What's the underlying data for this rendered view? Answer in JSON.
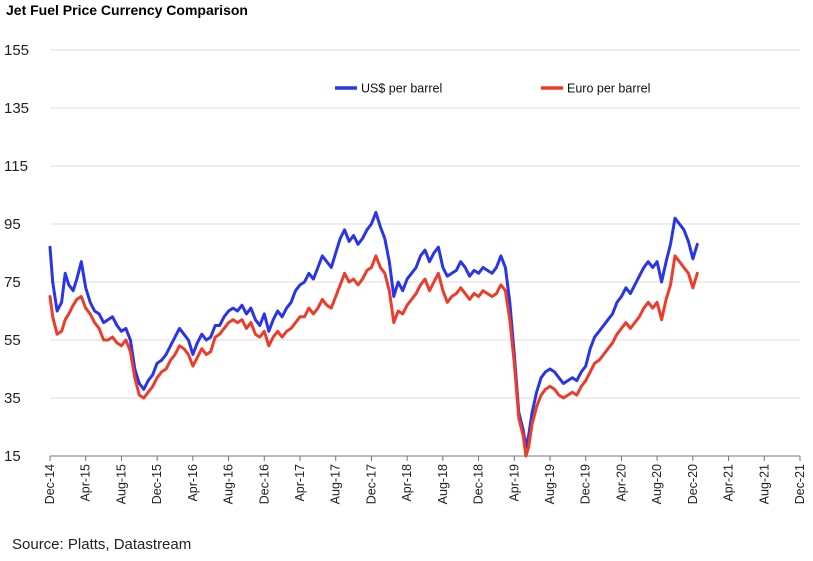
{
  "chart_data": {
    "type": "line",
    "title": "Jet Fuel Price Currency Comparison",
    "source": "Source: Platts, Datastream",
    "ylim": [
      15,
      155
    ],
    "yticks": [
      15,
      35,
      55,
      75,
      95,
      115,
      135,
      155
    ],
    "grid": true,
    "legend_position": "top",
    "xticks": [
      "Dec-14",
      "Apr-15",
      "Aug-15",
      "Dec-15",
      "Apr-16",
      "Aug-16",
      "Dec-16",
      "Apr-17",
      "Aug-17",
      "Dec-17",
      "Apr-18",
      "Aug-18",
      "Dec-18",
      "Apr-19",
      "Aug-19",
      "Dec-19",
      "Apr-20",
      "Aug-20",
      "Dec-20",
      "Apr-21",
      "Aug-21",
      "Dec-21"
    ],
    "series": [
      {
        "name": "US$ per barrel",
        "color": "#2b35e8",
        "points": [
          [
            0,
            87
          ],
          [
            0.3,
            75
          ],
          [
            0.8,
            65
          ],
          [
            1.3,
            68
          ],
          [
            1.7,
            78
          ],
          [
            2.1,
            74
          ],
          [
            2.6,
            72
          ],
          [
            3.0,
            76
          ],
          [
            3.5,
            82
          ],
          [
            4.0,
            73
          ],
          [
            4.5,
            68
          ],
          [
            5.0,
            65
          ],
          [
            5.5,
            64
          ],
          [
            6.0,
            61
          ],
          [
            6.5,
            62
          ],
          [
            7.0,
            63
          ],
          [
            7.5,
            60
          ],
          [
            8.0,
            58
          ],
          [
            8.5,
            59
          ],
          [
            9.0,
            55
          ],
          [
            9.5,
            45
          ],
          [
            10.0,
            40
          ],
          [
            10.5,
            38
          ],
          [
            11.0,
            41
          ],
          [
            11.5,
            43
          ],
          [
            12.0,
            47
          ],
          [
            12.5,
            48
          ],
          [
            13.0,
            50
          ],
          [
            13.5,
            53
          ],
          [
            14.0,
            56
          ],
          [
            14.5,
            59
          ],
          [
            15.0,
            57
          ],
          [
            15.5,
            55
          ],
          [
            16.0,
            50
          ],
          [
            16.5,
            54
          ],
          [
            17.0,
            57
          ],
          [
            17.5,
            55
          ],
          [
            18.0,
            56
          ],
          [
            18.5,
            60
          ],
          [
            19.0,
            60
          ],
          [
            19.5,
            63
          ],
          [
            20.0,
            65
          ],
          [
            20.5,
            66
          ],
          [
            21.0,
            65
          ],
          [
            21.5,
            67
          ],
          [
            22.0,
            64
          ],
          [
            22.5,
            66
          ],
          [
            23.0,
            62
          ],
          [
            23.5,
            60
          ],
          [
            24.0,
            64
          ],
          [
            24.5,
            58
          ],
          [
            25.0,
            62
          ],
          [
            25.5,
            65
          ],
          [
            26.0,
            63
          ],
          [
            26.5,
            66
          ],
          [
            27.0,
            68
          ],
          [
            27.5,
            72
          ],
          [
            28.0,
            74
          ],
          [
            28.5,
            75
          ],
          [
            29.0,
            78
          ],
          [
            29.5,
            76
          ],
          [
            30.0,
            80
          ],
          [
            30.5,
            84
          ],
          [
            31.0,
            82
          ],
          [
            31.5,
            80
          ],
          [
            32.0,
            85
          ],
          [
            32.5,
            90
          ],
          [
            33.0,
            93
          ],
          [
            33.5,
            89
          ],
          [
            34.0,
            91
          ],
          [
            34.5,
            88
          ],
          [
            35.0,
            90
          ],
          [
            35.5,
            93
          ],
          [
            36.0,
            95
          ],
          [
            36.5,
            99
          ],
          [
            37.0,
            94
          ],
          [
            37.5,
            90
          ],
          [
            38.0,
            82
          ],
          [
            38.5,
            70
          ],
          [
            39.0,
            75
          ],
          [
            39.5,
            72
          ],
          [
            40.0,
            76
          ],
          [
            40.5,
            78
          ],
          [
            41.0,
            80
          ],
          [
            41.5,
            84
          ],
          [
            42.0,
            86
          ],
          [
            42.5,
            82
          ],
          [
            43.0,
            85
          ],
          [
            43.5,
            87
          ],
          [
            44.0,
            80
          ],
          [
            44.5,
            77
          ],
          [
            45.0,
            78
          ],
          [
            45.5,
            79
          ],
          [
            46.0,
            82
          ],
          [
            46.5,
            80
          ],
          [
            47.0,
            77
          ],
          [
            47.5,
            79
          ],
          [
            48.0,
            78
          ],
          [
            48.5,
            80
          ],
          [
            49.0,
            79
          ],
          [
            49.5,
            78
          ],
          [
            50.0,
            80
          ],
          [
            50.5,
            84
          ],
          [
            51.0,
            80
          ],
          [
            51.5,
            68
          ],
          [
            52.0,
            50
          ],
          [
            52.5,
            30
          ],
          [
            53.0,
            24
          ],
          [
            53.3,
            18
          ],
          [
            53.6,
            22
          ],
          [
            54.0,
            30
          ],
          [
            54.5,
            37
          ],
          [
            55.0,
            42
          ],
          [
            55.5,
            44
          ],
          [
            56.0,
            45
          ],
          [
            56.5,
            44
          ],
          [
            57.0,
            42
          ],
          [
            57.5,
            40
          ],
          [
            58.0,
            41
          ],
          [
            58.5,
            42
          ],
          [
            59.0,
            41
          ],
          [
            59.5,
            44
          ],
          [
            60.0,
            46
          ],
          [
            60.5,
            52
          ],
          [
            61.0,
            56
          ],
          [
            61.5,
            58
          ],
          [
            62.0,
            60
          ],
          [
            62.5,
            62
          ],
          [
            63.0,
            64
          ],
          [
            63.5,
            68
          ],
          [
            64.0,
            70
          ],
          [
            64.5,
            73
          ],
          [
            65.0,
            71
          ],
          [
            65.5,
            74
          ],
          [
            66.0,
            77
          ],
          [
            66.5,
            80
          ],
          [
            67.0,
            82
          ],
          [
            67.5,
            80
          ],
          [
            68.0,
            82
          ],
          [
            68.5,
            75
          ],
          [
            69.0,
            82
          ],
          [
            69.5,
            88
          ],
          [
            70.0,
            97
          ],
          [
            70.5,
            95
          ],
          [
            71.0,
            93
          ],
          [
            71.5,
            89
          ],
          [
            72.0,
            83
          ],
          [
            72.5,
            88
          ]
        ]
      },
      {
        "name": "Euro per barrel",
        "color": "#ec3d2a",
        "points": [
          [
            0,
            70
          ],
          [
            0.3,
            63
          ],
          [
            0.8,
            57
          ],
          [
            1.3,
            58
          ],
          [
            1.7,
            62
          ],
          [
            2.1,
            64
          ],
          [
            2.6,
            67
          ],
          [
            3.0,
            69
          ],
          [
            3.5,
            70
          ],
          [
            4.0,
            66
          ],
          [
            4.5,
            64
          ],
          [
            5.0,
            61
          ],
          [
            5.5,
            59
          ],
          [
            6.0,
            55
          ],
          [
            6.5,
            55
          ],
          [
            7.0,
            56
          ],
          [
            7.5,
            54
          ],
          [
            8.0,
            53
          ],
          [
            8.5,
            55
          ],
          [
            9.0,
            51
          ],
          [
            9.5,
            42
          ],
          [
            10.0,
            36
          ],
          [
            10.5,
            35
          ],
          [
            11.0,
            37
          ],
          [
            11.5,
            39
          ],
          [
            12.0,
            42
          ],
          [
            12.5,
            44
          ],
          [
            13.0,
            45
          ],
          [
            13.5,
            48
          ],
          [
            14.0,
            50
          ],
          [
            14.5,
            53
          ],
          [
            15.0,
            52
          ],
          [
            15.5,
            50
          ],
          [
            16.0,
            46
          ],
          [
            16.5,
            49
          ],
          [
            17.0,
            52
          ],
          [
            17.5,
            50
          ],
          [
            18.0,
            51
          ],
          [
            18.5,
            56
          ],
          [
            19.0,
            57
          ],
          [
            19.5,
            59
          ],
          [
            20.0,
            61
          ],
          [
            20.5,
            62
          ],
          [
            21.0,
            61
          ],
          [
            21.5,
            62
          ],
          [
            22.0,
            59
          ],
          [
            22.5,
            61
          ],
          [
            23.0,
            57
          ],
          [
            23.5,
            56
          ],
          [
            24.0,
            58
          ],
          [
            24.5,
            53
          ],
          [
            25.0,
            56
          ],
          [
            25.5,
            58
          ],
          [
            26.0,
            56
          ],
          [
            26.5,
            58
          ],
          [
            27.0,
            59
          ],
          [
            27.5,
            61
          ],
          [
            28.0,
            63
          ],
          [
            28.5,
            63
          ],
          [
            29.0,
            66
          ],
          [
            29.5,
            64
          ],
          [
            30.0,
            66
          ],
          [
            30.5,
            69
          ],
          [
            31.0,
            67
          ],
          [
            31.5,
            66
          ],
          [
            32.0,
            70
          ],
          [
            32.5,
            74
          ],
          [
            33.0,
            78
          ],
          [
            33.5,
            75
          ],
          [
            34.0,
            76
          ],
          [
            34.5,
            74
          ],
          [
            35.0,
            76
          ],
          [
            35.5,
            79
          ],
          [
            36.0,
            80
          ],
          [
            36.5,
            84
          ],
          [
            37.0,
            80
          ],
          [
            37.5,
            78
          ],
          [
            38.0,
            72
          ],
          [
            38.5,
            61
          ],
          [
            39.0,
            65
          ],
          [
            39.5,
            64
          ],
          [
            40.0,
            67
          ],
          [
            40.5,
            69
          ],
          [
            41.0,
            71
          ],
          [
            41.5,
            74
          ],
          [
            42.0,
            76
          ],
          [
            42.5,
            72
          ],
          [
            43.0,
            75
          ],
          [
            43.5,
            78
          ],
          [
            44.0,
            72
          ],
          [
            44.5,
            68
          ],
          [
            45.0,
            70
          ],
          [
            45.5,
            71
          ],
          [
            46.0,
            73
          ],
          [
            46.5,
            71
          ],
          [
            47.0,
            69
          ],
          [
            47.5,
            71
          ],
          [
            48.0,
            70
          ],
          [
            48.5,
            72
          ],
          [
            49.0,
            71
          ],
          [
            49.5,
            70
          ],
          [
            50.0,
            71
          ],
          [
            50.5,
            74
          ],
          [
            51.0,
            72
          ],
          [
            51.5,
            62
          ],
          [
            52.0,
            47
          ],
          [
            52.5,
            28
          ],
          [
            53.0,
            22
          ],
          [
            53.3,
            15
          ],
          [
            53.6,
            18
          ],
          [
            54.0,
            26
          ],
          [
            54.5,
            32
          ],
          [
            55.0,
            36
          ],
          [
            55.5,
            38
          ],
          [
            56.0,
            39
          ],
          [
            56.5,
            38
          ],
          [
            57.0,
            36
          ],
          [
            57.5,
            35
          ],
          [
            58.0,
            36
          ],
          [
            58.5,
            37
          ],
          [
            59.0,
            36
          ],
          [
            59.5,
            39
          ],
          [
            60.0,
            41
          ],
          [
            60.5,
            44
          ],
          [
            61.0,
            47
          ],
          [
            61.5,
            48
          ],
          [
            62.0,
            50
          ],
          [
            62.5,
            52
          ],
          [
            63.0,
            54
          ],
          [
            63.5,
            57
          ],
          [
            64.0,
            59
          ],
          [
            64.5,
            61
          ],
          [
            65.0,
            59
          ],
          [
            65.5,
            61
          ],
          [
            66.0,
            63
          ],
          [
            66.5,
            66
          ],
          [
            67.0,
            68
          ],
          [
            67.5,
            66
          ],
          [
            68.0,
            68
          ],
          [
            68.5,
            62
          ],
          [
            69.0,
            69
          ],
          [
            69.5,
            74
          ],
          [
            70.0,
            84
          ],
          [
            70.5,
            82
          ],
          [
            71.0,
            80
          ],
          [
            71.5,
            78
          ],
          [
            72.0,
            73
          ],
          [
            72.5,
            78
          ]
        ]
      }
    ]
  }
}
